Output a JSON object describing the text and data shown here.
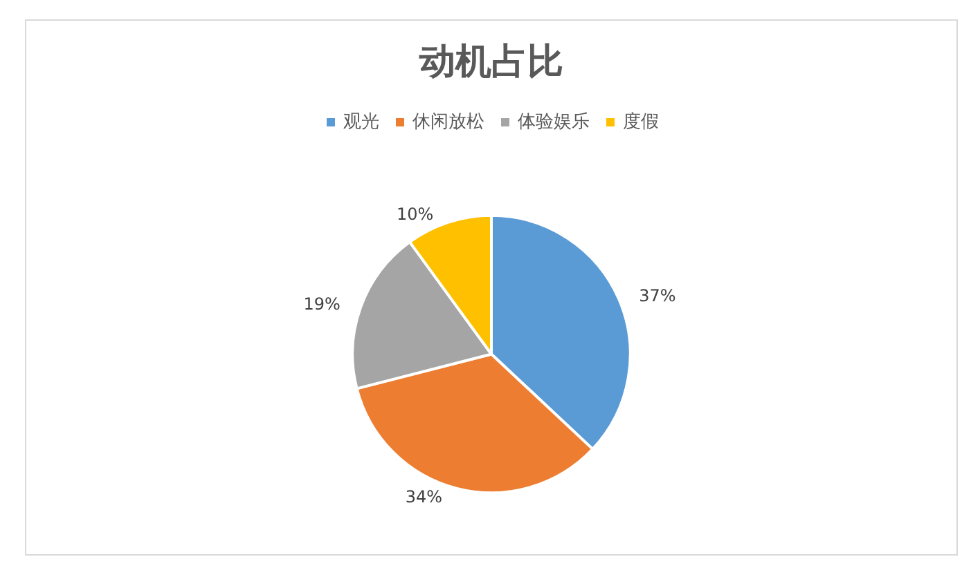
{
  "chart_data": {
    "type": "pie",
    "title": "动机占比",
    "categories": [
      "观光",
      "休闲放松",
      "体验娱乐",
      "度假"
    ],
    "values": [
      37,
      34,
      19,
      10
    ],
    "value_labels": [
      "37%",
      "34%",
      "19%",
      "10%"
    ],
    "colors": [
      "#5b9bd5",
      "#ed7d31",
      "#a5a5a5",
      "#ffc000"
    ],
    "legend": "top"
  }
}
